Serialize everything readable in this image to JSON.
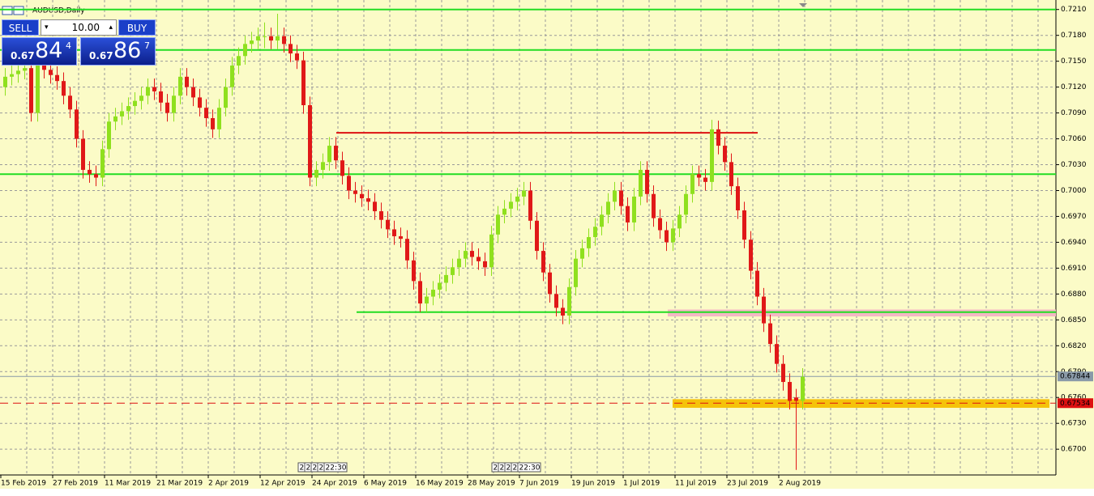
{
  "window_title": "AUDUSD,Daily",
  "trade_panel": {
    "sell": "SELL",
    "buy": "BUY",
    "lot": "10.00",
    "bid": [
      "0.67",
      "84",
      "4"
    ],
    "ask": [
      "0.67",
      "86",
      "7"
    ]
  },
  "chart_data": {
    "type": "candlestick",
    "ylim": [
      0.6672,
      0.7221
    ],
    "yticks": [
      {
        "value": 0.721,
        "label": "0.7210"
      },
      {
        "value": 0.718,
        "label": "0.7180"
      },
      {
        "value": 0.715,
        "label": "0.7150"
      },
      {
        "value": 0.712,
        "label": "0.7120"
      },
      {
        "value": 0.709,
        "label": "0.7090"
      },
      {
        "value": 0.706,
        "label": "0.7060"
      },
      {
        "value": 0.703,
        "label": "0.7030"
      },
      {
        "value": 0.7,
        "label": "0.7000"
      },
      {
        "value": 0.697,
        "label": "0.6970"
      },
      {
        "value": 0.694,
        "label": "0.6940"
      },
      {
        "value": 0.691,
        "label": "0.6910"
      },
      {
        "value": 0.688,
        "label": "0.6880"
      },
      {
        "value": 0.685,
        "label": "0.6850"
      },
      {
        "value": 0.682,
        "label": "0.6820"
      },
      {
        "value": 0.679,
        "label": "0.6790"
      },
      {
        "value": 0.676,
        "label": "0.6760"
      },
      {
        "value": 0.673,
        "label": "0.6730"
      },
      {
        "value": 0.67,
        "label": "0.6700"
      }
    ],
    "xticks": [
      "15 Feb 2019",
      "27 Feb 2019",
      "11 Mar 2019",
      "21 Mar 2019",
      "2 Apr 2019",
      "12 Apr 2019",
      "24 Apr 2019",
      "6 May 2019",
      "16 May 2019",
      "28 May 2019",
      "7 Jun 2019",
      "19 Jun 2019",
      "1 Jul 2019",
      "11 Jul 2019",
      "23 Jul 2019",
      "2 Aug 2019"
    ],
    "up_color": "#8fe01e",
    "down_color": "#e01818",
    "grid": true,
    "bid_line": 0.67844,
    "alert_line": 0.67534,
    "levels": [
      {
        "value": 0.721,
        "color": "#22dd22"
      },
      {
        "value": 0.7163,
        "color": "#22dd22"
      },
      {
        "value": 0.7019,
        "color": "#22dd22"
      },
      {
        "value": 0.6859,
        "color": "#22dd22"
      },
      {
        "value": 0.7067,
        "color": "#dd1111"
      }
    ],
    "zones": [
      {
        "from": 0.6854,
        "to": 0.6862,
        "color": "#f4b8c4"
      },
      {
        "from": 0.6748,
        "to": 0.6758,
        "color": "#f5c20a"
      }
    ],
    "event_labels": [
      [
        "2",
        "2",
        "2",
        "2",
        "22:30"
      ],
      [
        "2",
        "2",
        "2",
        "2",
        "22:30"
      ]
    ],
    "ohlc": [
      [
        0.712,
        0.7142,
        0.711,
        0.7132
      ],
      [
        0.7132,
        0.7145,
        0.7122,
        0.7135
      ],
      [
        0.7135,
        0.7149,
        0.7125,
        0.7139
      ],
      [
        0.7139,
        0.7152,
        0.7129,
        0.7142
      ],
      [
        0.7142,
        0.7152,
        0.708,
        0.709
      ],
      [
        0.709,
        0.7156,
        0.708,
        0.7146
      ],
      [
        0.7146,
        0.7156,
        0.713,
        0.714
      ],
      [
        0.714,
        0.715,
        0.7124,
        0.7134
      ],
      [
        0.7134,
        0.7144,
        0.7117,
        0.7127
      ],
      [
        0.7127,
        0.7137,
        0.71,
        0.711
      ],
      [
        0.711,
        0.712,
        0.7084,
        0.7094
      ],
      [
        0.7094,
        0.7104,
        0.705,
        0.706
      ],
      [
        0.706,
        0.707,
        0.7014,
        0.7024
      ],
      [
        0.7024,
        0.7034,
        0.7009,
        0.7019
      ],
      [
        0.7019,
        0.7029,
        0.7005,
        0.7015
      ],
      [
        0.7015,
        0.7058,
        0.7005,
        0.7048
      ],
      [
        0.7048,
        0.709,
        0.7038,
        0.708
      ],
      [
        0.708,
        0.7096,
        0.707,
        0.7086
      ],
      [
        0.7086,
        0.7102,
        0.7076,
        0.7092
      ],
      [
        0.7092,
        0.7108,
        0.7082,
        0.7098
      ],
      [
        0.7098,
        0.7114,
        0.7088,
        0.7104
      ],
      [
        0.7104,
        0.712,
        0.7094,
        0.711
      ],
      [
        0.711,
        0.713,
        0.71,
        0.712
      ],
      [
        0.712,
        0.713,
        0.7105,
        0.7115
      ],
      [
        0.7115,
        0.7125,
        0.7092,
        0.7102
      ],
      [
        0.7102,
        0.7112,
        0.708,
        0.709
      ],
      [
        0.709,
        0.712,
        0.708,
        0.711
      ],
      [
        0.711,
        0.7142,
        0.71,
        0.7132
      ],
      [
        0.7132,
        0.7142,
        0.711,
        0.712
      ],
      [
        0.712,
        0.713,
        0.7098,
        0.7108
      ],
      [
        0.7108,
        0.7118,
        0.7086,
        0.7096
      ],
      [
        0.7096,
        0.7106,
        0.7074,
        0.7084
      ],
      [
        0.7084,
        0.7094,
        0.7061,
        0.7071
      ],
      [
        0.7071,
        0.7106,
        0.7061,
        0.7096
      ],
      [
        0.7096,
        0.713,
        0.7086,
        0.712
      ],
      [
        0.712,
        0.7155,
        0.711,
        0.7145
      ],
      [
        0.7145,
        0.7166,
        0.7135,
        0.7156
      ],
      [
        0.7156,
        0.718,
        0.7146,
        0.717
      ],
      [
        0.717,
        0.7184,
        0.716,
        0.7174
      ],
      [
        0.7174,
        0.7189,
        0.7164,
        0.7179
      ],
      [
        0.7179,
        0.7195,
        0.7165,
        0.7179
      ],
      [
        0.7179,
        0.7189,
        0.7164,
        0.7174
      ],
      [
        0.7174,
        0.7205,
        0.7164,
        0.7179
      ],
      [
        0.7179,
        0.7189,
        0.716,
        0.717
      ],
      [
        0.717,
        0.718,
        0.7149,
        0.7159
      ],
      [
        0.7159,
        0.7169,
        0.7141,
        0.7151
      ],
      [
        0.7151,
        0.7161,
        0.7089,
        0.7099
      ],
      [
        0.7099,
        0.7109,
        0.7005,
        0.7015
      ],
      [
        0.7015,
        0.7034,
        0.7005,
        0.7024
      ],
      [
        0.7024,
        0.7043,
        0.7014,
        0.7033
      ],
      [
        0.7033,
        0.7062,
        0.7023,
        0.7052
      ],
      [
        0.7052,
        0.7062,
        0.7025,
        0.7035
      ],
      [
        0.7035,
        0.7045,
        0.7007,
        0.7017
      ],
      [
        0.7017,
        0.7027,
        0.699,
        0.7
      ],
      [
        0.7,
        0.701,
        0.6986,
        0.6996
      ],
      [
        0.6996,
        0.7006,
        0.6981,
        0.6991
      ],
      [
        0.6991,
        0.7001,
        0.6977,
        0.6987
      ],
      [
        0.6987,
        0.6997,
        0.6966,
        0.6976
      ],
      [
        0.6976,
        0.6986,
        0.6956,
        0.6966
      ],
      [
        0.6966,
        0.6976,
        0.6945,
        0.6955
      ],
      [
        0.6955,
        0.6965,
        0.6937,
        0.6947
      ],
      [
        0.6947,
        0.6957,
        0.6934,
        0.6944
      ],
      [
        0.6944,
        0.6954,
        0.6909,
        0.6919
      ],
      [
        0.6919,
        0.6929,
        0.6885,
        0.6895
      ],
      [
        0.6895,
        0.6905,
        0.6859,
        0.6869
      ],
      [
        0.6869,
        0.6887,
        0.6859,
        0.6877
      ],
      [
        0.6877,
        0.6895,
        0.6867,
        0.6885
      ],
      [
        0.6885,
        0.6903,
        0.6875,
        0.6893
      ],
      [
        0.6893,
        0.6912,
        0.6883,
        0.6902
      ],
      [
        0.6902,
        0.6921,
        0.6892,
        0.6911
      ],
      [
        0.6911,
        0.6931,
        0.6901,
        0.6921
      ],
      [
        0.6921,
        0.694,
        0.6911,
        0.693
      ],
      [
        0.693,
        0.694,
        0.6913,
        0.6923
      ],
      [
        0.6923,
        0.6933,
        0.6908,
        0.6918
      ],
      [
        0.6918,
        0.6928,
        0.6901,
        0.6911
      ],
      [
        0.6911,
        0.6959,
        0.6901,
        0.6949
      ],
      [
        0.6949,
        0.6982,
        0.6939,
        0.6972
      ],
      [
        0.6972,
        0.6989,
        0.6962,
        0.6979
      ],
      [
        0.6979,
        0.6997,
        0.6969,
        0.6987
      ],
      [
        0.6987,
        0.7003,
        0.6977,
        0.6993
      ],
      [
        0.6993,
        0.701,
        0.6983,
        0.7
      ],
      [
        0.7,
        0.701,
        0.6955,
        0.6965
      ],
      [
        0.6965,
        0.6975,
        0.692,
        0.693
      ],
      [
        0.693,
        0.694,
        0.6895,
        0.6905
      ],
      [
        0.6905,
        0.6915,
        0.687,
        0.688
      ],
      [
        0.688,
        0.689,
        0.6854,
        0.6864
      ],
      [
        0.6864,
        0.6874,
        0.6845,
        0.6855
      ],
      [
        0.6855,
        0.6898,
        0.6845,
        0.6888
      ],
      [
        0.6888,
        0.6931,
        0.6878,
        0.6921
      ],
      [
        0.6921,
        0.6943,
        0.6911,
        0.6933
      ],
      [
        0.6933,
        0.6956,
        0.6923,
        0.6946
      ],
      [
        0.6946,
        0.6968,
        0.6936,
        0.6958
      ],
      [
        0.6958,
        0.6982,
        0.6948,
        0.6972
      ],
      [
        0.6972,
        0.6997,
        0.6962,
        0.6987
      ],
      [
        0.6987,
        0.701,
        0.6977,
        0.7
      ],
      [
        0.7,
        0.701,
        0.6972,
        0.6982
      ],
      [
        0.6982,
        0.6992,
        0.6953,
        0.6963
      ],
      [
        0.6963,
        0.7003,
        0.6953,
        0.6993
      ],
      [
        0.6993,
        0.7034,
        0.6983,
        0.7024
      ],
      [
        0.7024,
        0.7034,
        0.6986,
        0.6996
      ],
      [
        0.6996,
        0.7006,
        0.6958,
        0.6968
      ],
      [
        0.6968,
        0.6978,
        0.6944,
        0.6954
      ],
      [
        0.6954,
        0.6964,
        0.693,
        0.694
      ],
      [
        0.694,
        0.6966,
        0.693,
        0.6956
      ],
      [
        0.6956,
        0.6982,
        0.6946,
        0.6972
      ],
      [
        0.6972,
        0.7006,
        0.6962,
        0.6996
      ],
      [
        0.6996,
        0.7029,
        0.6986,
        0.7019
      ],
      [
        0.7019,
        0.7029,
        0.7005,
        0.7015
      ],
      [
        0.7015,
        0.7025,
        0.7,
        0.701
      ],
      [
        0.701,
        0.7082,
        0.7,
        0.7071
      ],
      [
        0.7071,
        0.7081,
        0.7042,
        0.7052
      ],
      [
        0.7052,
        0.7062,
        0.7023,
        0.7033
      ],
      [
        0.7033,
        0.7043,
        0.6995,
        0.7005
      ],
      [
        0.7005,
        0.7015,
        0.6967,
        0.6977
      ],
      [
        0.6977,
        0.6987,
        0.6933,
        0.6943
      ],
      [
        0.6943,
        0.6953,
        0.6897,
        0.6907
      ],
      [
        0.6907,
        0.6917,
        0.6867,
        0.6877
      ],
      [
        0.6877,
        0.6887,
        0.6836,
        0.6846
      ],
      [
        0.6846,
        0.6856,
        0.6812,
        0.6822
      ],
      [
        0.6822,
        0.6832,
        0.6789,
        0.6799
      ],
      [
        0.6799,
        0.6809,
        0.6768,
        0.6778
      ],
      [
        0.6778,
        0.6788,
        0.6746,
        0.6756
      ],
      [
        0.676,
        0.677,
        0.6676,
        0.6756
      ],
      [
        0.6756,
        0.6794,
        0.6746,
        0.6784
      ]
    ]
  }
}
